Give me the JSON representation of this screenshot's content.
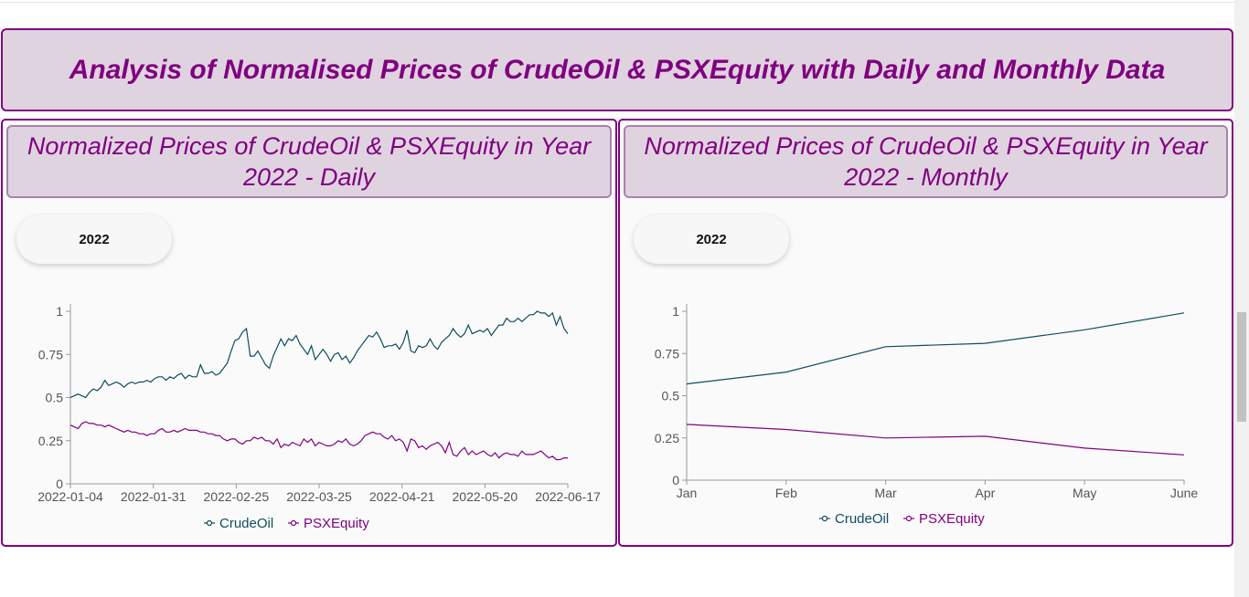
{
  "page": {
    "title": "Analysis of Normalised Prices of CrudeOil & PSXEquity with Daily and Monthly Data"
  },
  "colors": {
    "crude": "#0e4d5c",
    "psx": "#800080",
    "axis": "#999999"
  },
  "panels": {
    "daily": {
      "title": "Normalized Prices of CrudeOil & PSXEquity in Year 2022 - Daily",
      "year": "2022"
    },
    "monthly": {
      "title": "Normalized Prices of CrudeOil & PSXEquity in Year 2022 - Monthly",
      "year": "2022"
    }
  },
  "chart_data": [
    {
      "type": "line",
      "title": "Normalized Prices of CrudeOil & PSXEquity in Year 2022 - Daily",
      "x_tick_labels": [
        "2022-01-04",
        "2022-01-31",
        "2022-02-25",
        "2022-03-25",
        "2022-04-21",
        "2022-05-20",
        "2022-06-17"
      ],
      "x_tick_index": [
        0,
        19,
        38,
        57,
        76,
        95,
        114
      ],
      "y_ticks": [
        0,
        0.25,
        0.5,
        0.75,
        1
      ],
      "y_tick_labels": [
        "0",
        "0.25",
        "0.5",
        "0.75",
        "1"
      ],
      "ylim": [
        0,
        1
      ],
      "legend": "bottom",
      "series": [
        {
          "name": "CrudeOil",
          "values": [
            0.5,
            0.51,
            0.52,
            0.51,
            0.5,
            0.53,
            0.55,
            0.54,
            0.56,
            0.6,
            0.57,
            0.58,
            0.59,
            0.58,
            0.56,
            0.58,
            0.59,
            0.58,
            0.59,
            0.59,
            0.6,
            0.59,
            0.61,
            0.62,
            0.62,
            0.6,
            0.62,
            0.61,
            0.63,
            0.64,
            0.61,
            0.63,
            0.62,
            0.62,
            0.69,
            0.64,
            0.64,
            0.65,
            0.63,
            0.64,
            0.67,
            0.7,
            0.77,
            0.83,
            0.84,
            0.88,
            0.9,
            0.74,
            0.74,
            0.77,
            0.73,
            0.69,
            0.67,
            0.74,
            0.79,
            0.84,
            0.8,
            0.84,
            0.83,
            0.86,
            0.81,
            0.78,
            0.75,
            0.8,
            0.72,
            0.75,
            0.78,
            0.75,
            0.71,
            0.75,
            0.76,
            0.72,
            0.74,
            0.7,
            0.73,
            0.77,
            0.8,
            0.83,
            0.86,
            0.85,
            0.88,
            0.84,
            0.79,
            0.8,
            0.8,
            0.81,
            0.78,
            0.82,
            0.89,
            0.77,
            0.76,
            0.8,
            0.79,
            0.8,
            0.84,
            0.8,
            0.78,
            0.82,
            0.84,
            0.86,
            0.9,
            0.87,
            0.85,
            0.87,
            0.92,
            0.87,
            0.88,
            0.89,
            0.88,
            0.9,
            0.86,
            0.89,
            0.92,
            0.92,
            0.96,
            0.94,
            0.94,
            0.96,
            0.94,
            0.96,
            0.98,
            0.98,
            1.0,
            0.99,
            0.99,
            0.97,
            0.99,
            0.92,
            0.97,
            0.9,
            0.87
          ]
        },
        {
          "name": "PSXEquity",
          "values": [
            0.34,
            0.33,
            0.32,
            0.35,
            0.36,
            0.35,
            0.35,
            0.34,
            0.34,
            0.33,
            0.34,
            0.33,
            0.32,
            0.31,
            0.3,
            0.31,
            0.3,
            0.3,
            0.29,
            0.29,
            0.28,
            0.29,
            0.29,
            0.31,
            0.32,
            0.3,
            0.3,
            0.31,
            0.3,
            0.31,
            0.32,
            0.31,
            0.31,
            0.31,
            0.3,
            0.3,
            0.29,
            0.29,
            0.28,
            0.28,
            0.26,
            0.25,
            0.26,
            0.26,
            0.24,
            0.23,
            0.25,
            0.25,
            0.27,
            0.26,
            0.27,
            0.25,
            0.25,
            0.23,
            0.26,
            0.21,
            0.23,
            0.22,
            0.24,
            0.23,
            0.22,
            0.26,
            0.24,
            0.26,
            0.22,
            0.24,
            0.23,
            0.22,
            0.22,
            0.23,
            0.25,
            0.24,
            0.26,
            0.23,
            0.22,
            0.23,
            0.25,
            0.28,
            0.29,
            0.3,
            0.29,
            0.29,
            0.27,
            0.26,
            0.28,
            0.25,
            0.26,
            0.24,
            0.19,
            0.26,
            0.25,
            0.21,
            0.22,
            0.2,
            0.22,
            0.23,
            0.24,
            0.22,
            0.18,
            0.24,
            0.17,
            0.16,
            0.19,
            0.21,
            0.17,
            0.19,
            0.17,
            0.18,
            0.19,
            0.17,
            0.16,
            0.18,
            0.15,
            0.17,
            0.18,
            0.17,
            0.17,
            0.16,
            0.19,
            0.17,
            0.17,
            0.17,
            0.18,
            0.19,
            0.17,
            0.15,
            0.16,
            0.14,
            0.14,
            0.15,
            0.15
          ]
        }
      ]
    },
    {
      "type": "line",
      "title": "Normalized Prices of CrudeOil & PSXEquity in Year 2022 - Monthly",
      "categories": [
        "Jan",
        "Feb",
        "Mar",
        "Apr",
        "May",
        "June"
      ],
      "y_ticks": [
        0,
        0.25,
        0.5,
        0.75,
        1
      ],
      "y_tick_labels": [
        "0",
        "0.25",
        "0.5",
        "0.75",
        "1"
      ],
      "ylim": [
        0,
        1
      ],
      "legend": "bottom",
      "series": [
        {
          "name": "CrudeOil",
          "values": [
            0.57,
            0.64,
            0.79,
            0.81,
            0.89,
            0.99
          ]
        },
        {
          "name": "PSXEquity",
          "values": [
            0.33,
            0.3,
            0.25,
            0.26,
            0.19,
            0.15
          ]
        }
      ]
    }
  ]
}
